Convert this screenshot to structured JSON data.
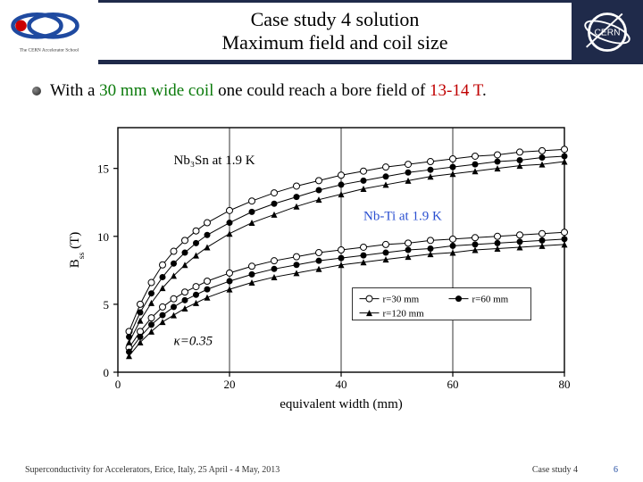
{
  "header": {
    "title_line1": "Case study 4 solution",
    "title_line2": "Maximum field and coil size",
    "left_logo_caption": "The CERN Accelerator School",
    "right_logo_text": "CERN"
  },
  "bullet": {
    "prefix": "With a ",
    "coil_width": "30 mm wide coil",
    "mid": " one could reach a bore field of ",
    "field_range": "13-14 T",
    "suffix": "."
  },
  "chart": {
    "type": "line-scatter",
    "xlabel": "equivalent width (mm)",
    "ylabel": "B",
    "ylabel_sub": "ss",
    "ylabel_unit": " (T)",
    "xlim": [
      0,
      80
    ],
    "ylim": [
      0,
      18
    ],
    "xticks": [
      0,
      20,
      40,
      60,
      80
    ],
    "yticks": [
      0,
      5,
      10,
      15
    ],
    "kappa_label": "κ=0.35",
    "annot_upper": "Nb₃Sn at 1.9 K",
    "annot_lower": "Nb-Ti at 1.9 K",
    "annot_lower_color": "#2a4fd0",
    "legend": [
      {
        "marker": "circle-open",
        "label": "r=30 mm"
      },
      {
        "marker": "circle-filled",
        "label": "r=60 mm"
      },
      {
        "marker": "triangle-filled",
        "label": "r=120 mm"
      }
    ],
    "series": {
      "upper": {
        "r30": {
          "x": [
            2,
            4,
            6,
            8,
            10,
            12,
            14,
            16,
            20,
            24,
            28,
            32,
            36,
            40,
            44,
            48,
            52,
            56,
            60,
            64,
            68,
            72,
            76,
            80
          ],
          "y": [
            3.0,
            5.0,
            6.6,
            7.9,
            8.9,
            9.7,
            10.4,
            11.0,
            11.9,
            12.6,
            13.2,
            13.7,
            14.1,
            14.5,
            14.8,
            15.1,
            15.3,
            15.5,
            15.7,
            15.9,
            16.0,
            16.2,
            16.3,
            16.4
          ],
          "marker": "circle-open"
        },
        "r60": {
          "x": [
            2,
            4,
            6,
            8,
            10,
            12,
            14,
            16,
            20,
            24,
            28,
            32,
            36,
            40,
            44,
            48,
            52,
            56,
            60,
            64,
            68,
            72,
            76,
            80
          ],
          "y": [
            2.6,
            4.4,
            5.8,
            7.0,
            8.0,
            8.8,
            9.5,
            10.1,
            11.0,
            11.8,
            12.4,
            12.9,
            13.4,
            13.8,
            14.1,
            14.4,
            14.7,
            14.9,
            15.1,
            15.3,
            15.5,
            15.6,
            15.8,
            15.9
          ],
          "marker": "circle-filled"
        },
        "r120": {
          "x": [
            2,
            4,
            6,
            8,
            10,
            12,
            14,
            16,
            20,
            24,
            28,
            32,
            36,
            40,
            44,
            48,
            52,
            56,
            60,
            64,
            68,
            72,
            76,
            80
          ],
          "y": [
            2.2,
            3.8,
            5.1,
            6.2,
            7.1,
            7.9,
            8.6,
            9.2,
            10.2,
            11.0,
            11.6,
            12.2,
            12.7,
            13.1,
            13.5,
            13.8,
            14.1,
            14.4,
            14.6,
            14.8,
            15.0,
            15.2,
            15.3,
            15.5
          ],
          "marker": "triangle-filled"
        }
      },
      "lower": {
        "r30": {
          "x": [
            2,
            4,
            6,
            8,
            10,
            12,
            14,
            16,
            20,
            24,
            28,
            32,
            36,
            40,
            44,
            48,
            52,
            56,
            60,
            64,
            68,
            72,
            76,
            80
          ],
          "y": [
            1.8,
            3.0,
            4.0,
            4.8,
            5.4,
            5.9,
            6.3,
            6.7,
            7.3,
            7.8,
            8.2,
            8.5,
            8.8,
            9.0,
            9.2,
            9.4,
            9.5,
            9.7,
            9.8,
            9.9,
            10.0,
            10.1,
            10.2,
            10.3
          ],
          "marker": "circle-open"
        },
        "r60": {
          "x": [
            2,
            4,
            6,
            8,
            10,
            12,
            14,
            16,
            20,
            24,
            28,
            32,
            36,
            40,
            44,
            48,
            52,
            56,
            60,
            64,
            68,
            72,
            76,
            80
          ],
          "y": [
            1.5,
            2.6,
            3.5,
            4.2,
            4.8,
            5.3,
            5.7,
            6.1,
            6.7,
            7.2,
            7.6,
            7.9,
            8.2,
            8.4,
            8.6,
            8.8,
            9.0,
            9.1,
            9.3,
            9.4,
            9.5,
            9.6,
            9.7,
            9.8
          ],
          "marker": "circle-filled"
        },
        "r120": {
          "x": [
            2,
            4,
            6,
            8,
            10,
            12,
            14,
            16,
            20,
            24,
            28,
            32,
            36,
            40,
            44,
            48,
            52,
            56,
            60,
            64,
            68,
            72,
            76,
            80
          ],
          "y": [
            1.2,
            2.2,
            3.0,
            3.7,
            4.2,
            4.7,
            5.1,
            5.5,
            6.1,
            6.6,
            7.0,
            7.3,
            7.6,
            7.9,
            8.1,
            8.3,
            8.5,
            8.7,
            8.8,
            9.0,
            9.1,
            9.2,
            9.3,
            9.4
          ],
          "marker": "triangle-filled"
        }
      }
    },
    "axis_color": "#000000",
    "grid_color": "#000000",
    "series_color": "#000000",
    "background_color": "#ffffff",
    "font_size_axis": 15,
    "font_size_tick": 13,
    "font_size_annot": 15,
    "marker_size": 3.5,
    "line_width": 1
  },
  "footer": {
    "left": "Superconductivity for Accelerators, Erice, Italy, 25 April - 4 May, 2013",
    "mid": "Case study 4",
    "page": "6"
  },
  "colors": {
    "header_bg": "#1f2a4a",
    "green": "#0a7a0a",
    "red": "#c00000",
    "blue_annot": "#2a4fd0"
  }
}
